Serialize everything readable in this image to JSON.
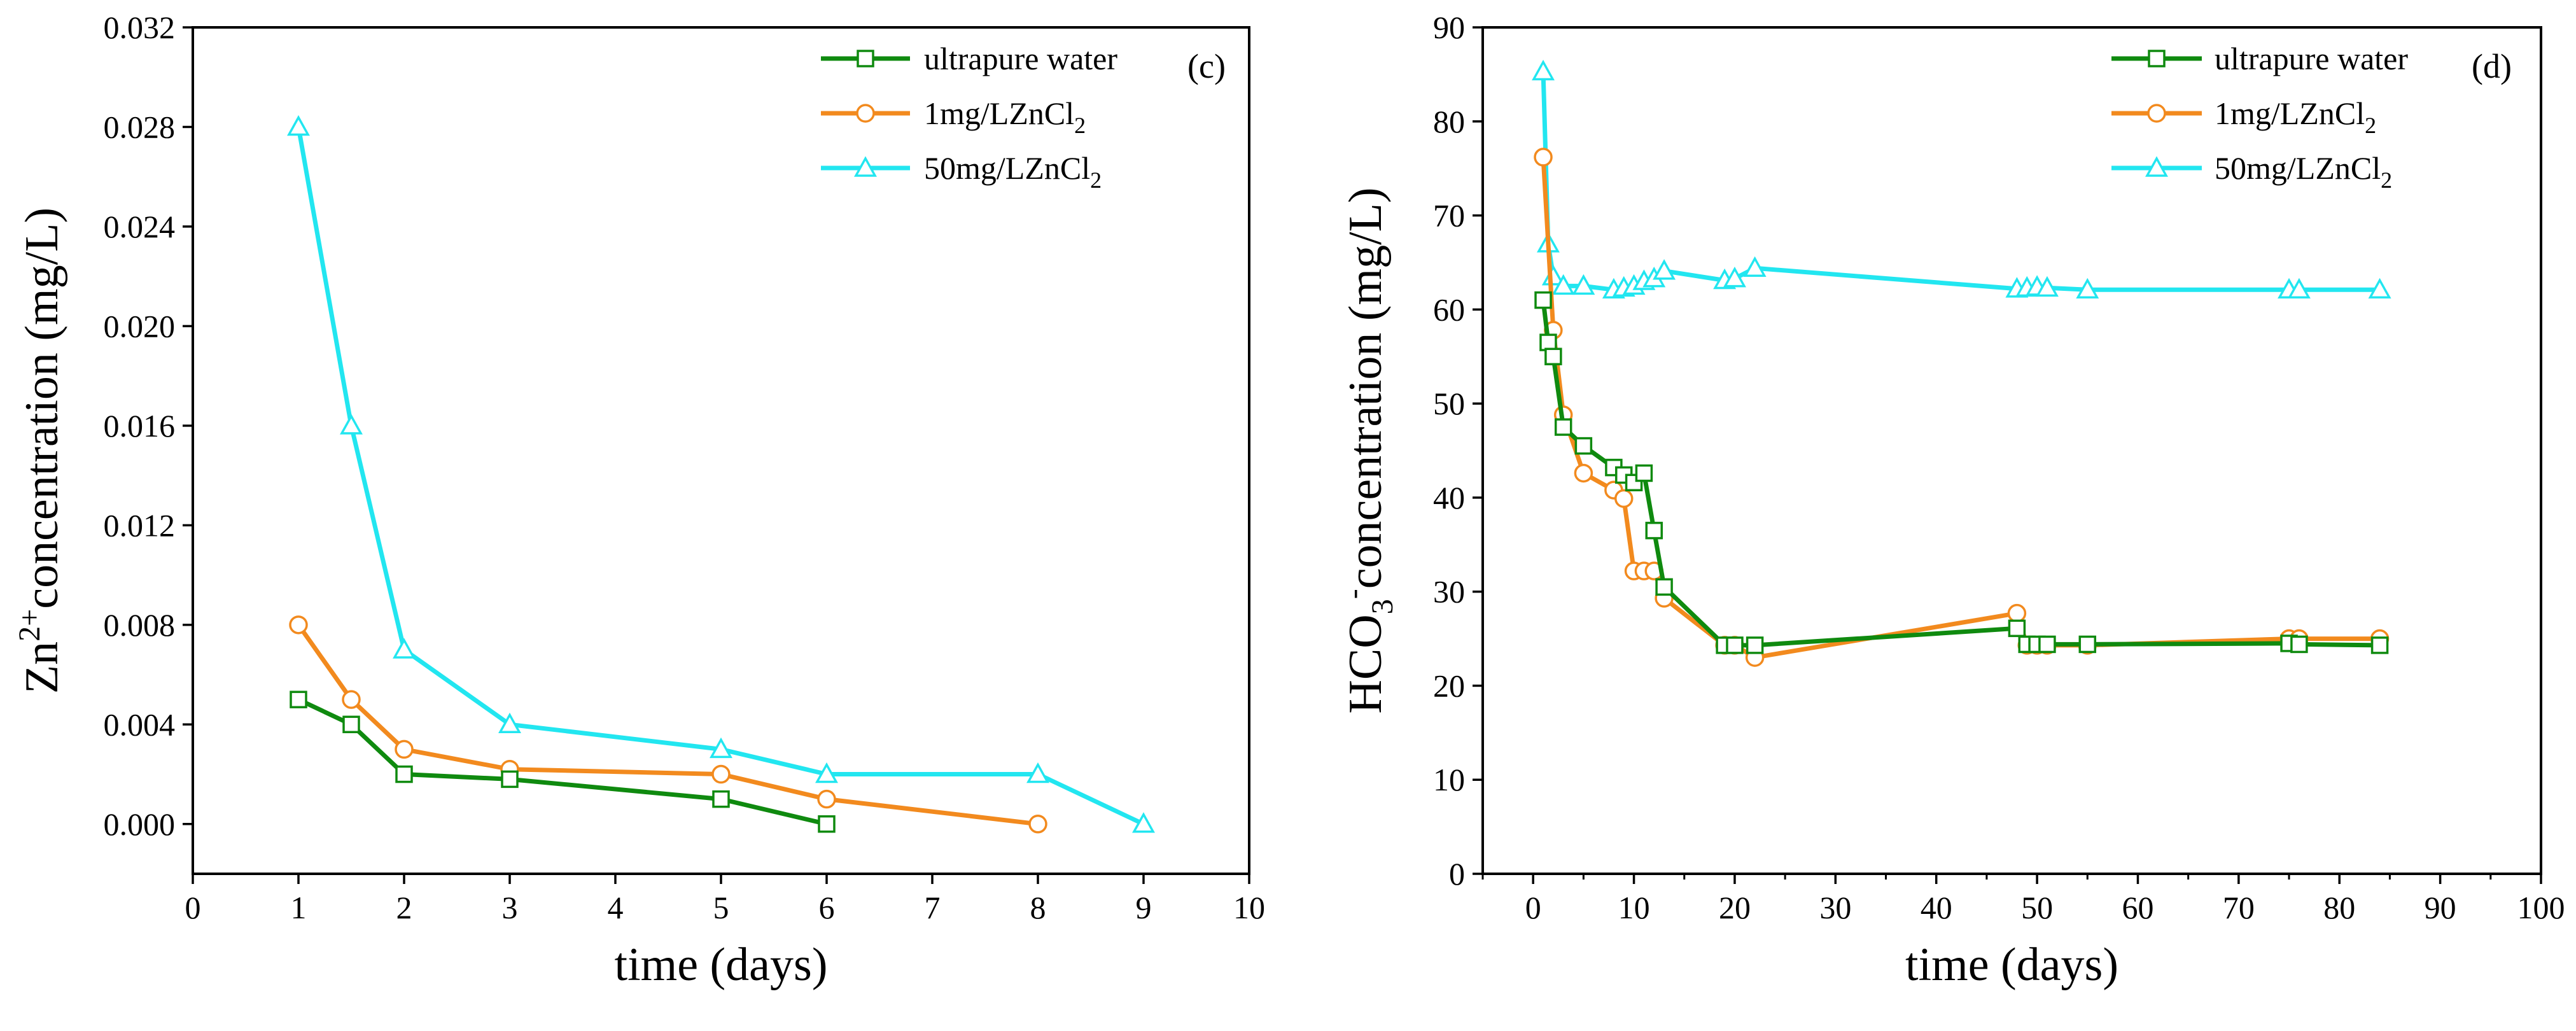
{
  "colors": {
    "ultrapure": "#0f8a0f",
    "one_mg": "#f28a1e",
    "fifty_mg": "#22e6f0"
  },
  "chart_data": [
    {
      "type": "line",
      "panel_label": "(c)",
      "xlabel": "time (days)",
      "ylabel_parts": [
        "Zn",
        "2+",
        "concentration (mg/L)"
      ],
      "xlim": [
        0,
        10
      ],
      "ylim": [
        -0.002,
        0.032
      ],
      "x_ticks": [
        0,
        1,
        2,
        3,
        4,
        5,
        6,
        7,
        8,
        9,
        10
      ],
      "y_ticks": [
        0.0,
        0.004,
        0.008,
        0.012,
        0.016,
        0.02,
        0.024,
        0.028,
        0.032
      ],
      "x_tick_labels": [
        "0",
        "1",
        "2",
        "3",
        "4",
        "5",
        "6",
        "7",
        "8",
        "9",
        "10"
      ],
      "y_tick_labels": [
        "0.000",
        "0.004",
        "0.008",
        "0.012",
        "0.016",
        "0.020",
        "0.024",
        "0.028",
        "0.032"
      ],
      "legend_position": "top-right",
      "series": [
        {
          "name": "ultrapure water",
          "legend_parts": [
            "ultrapure water"
          ],
          "marker": "square",
          "color_key": "ultrapure",
          "x": [
            1,
            1.5,
            2,
            3,
            5,
            6
          ],
          "y": [
            0.005,
            0.004,
            0.002,
            0.0018,
            0.001,
            0.0
          ]
        },
        {
          "name": "1mg/LZnCl2",
          "legend_parts": [
            "1mg/LZnCl",
            "2"
          ],
          "marker": "circle",
          "color_key": "one_mg",
          "x": [
            1,
            1.5,
            2,
            3,
            5,
            6,
            8
          ],
          "y": [
            0.008,
            0.005,
            0.003,
            0.0022,
            0.002,
            0.001,
            0.0
          ]
        },
        {
          "name": "50mg/LZnCl2",
          "legend_parts": [
            "50mg/LZnCl",
            "2"
          ],
          "marker": "triangle",
          "color_key": "fifty_mg",
          "x": [
            1,
            1.5,
            2,
            3,
            5,
            6,
            8,
            9
          ],
          "y": [
            0.028,
            0.016,
            0.007,
            0.004,
            0.003,
            0.002,
            0.002,
            0.0
          ]
        }
      ]
    },
    {
      "type": "line",
      "panel_label": "(d)",
      "xlabel": "time (days)",
      "ylabel_parts": [
        "HCO",
        "3",
        "-",
        "concentration (mg/L)"
      ],
      "xlim": [
        -5,
        100
      ],
      "ylim": [
        0,
        90
      ],
      "x_ticks": [
        0,
        10,
        20,
        30,
        40,
        50,
        60,
        70,
        80,
        90,
        100
      ],
      "y_ticks": [
        0,
        10,
        20,
        30,
        40,
        50,
        60,
        70,
        80,
        90
      ],
      "x_tick_labels": [
        "0",
        "10",
        "20",
        "30",
        "40",
        "50",
        "60",
        "70",
        "80",
        "90",
        "100"
      ],
      "y_tick_labels": [
        "0",
        "10",
        "20",
        "30",
        "40",
        "50",
        "60",
        "70",
        "80",
        "90"
      ],
      "legend_position": "top-right",
      "series": [
        {
          "name": "ultrapure water",
          "legend_parts": [
            "ultrapure water"
          ],
          "marker": "square",
          "color_key": "ultrapure",
          "x": [
            1,
            1.5,
            2,
            3,
            5,
            8,
            9,
            10,
            11,
            12,
            13,
            19,
            20,
            22,
            48,
            49,
            50,
            51,
            55,
            75,
            76,
            84
          ],
          "y": [
            61,
            56.5,
            55,
            47.5,
            45.5,
            43.2,
            42.4,
            41.6,
            42.6,
            36.5,
            30.5,
            24.3,
            24.3,
            24.3,
            26.1,
            24.4,
            24.4,
            24.4,
            24.4,
            24.5,
            24.4,
            24.3
          ]
        },
        {
          "name": "1mg/LZnCl2",
          "legend_parts": [
            "1mg/LZnCl",
            "2"
          ],
          "marker": "circle",
          "color_key": "one_mg",
          "x": [
            1,
            2,
            3,
            5,
            8,
            9,
            10,
            11,
            12,
            13,
            19,
            20,
            22,
            48,
            49,
            50,
            51,
            55,
            75,
            76,
            84
          ],
          "y": [
            76.2,
            57.8,
            48.8,
            42.6,
            40.8,
            39.9,
            32.2,
            32.2,
            32.2,
            29.3,
            24.3,
            24.3,
            23,
            27.7,
            24.3,
            24.3,
            24.3,
            24.3,
            25,
            25,
            25
          ]
        },
        {
          "name": "50mg/LZnCl2",
          "legend_parts": [
            "50mg/LZnCl",
            "2"
          ],
          "marker": "triangle",
          "color_key": "fifty_mg",
          "x": [
            1,
            1.5,
            2,
            3,
            5,
            8,
            9,
            10,
            11,
            12,
            13,
            19,
            20,
            22,
            48,
            49,
            50,
            51,
            55,
            75,
            76,
            84
          ],
          "y": [
            85.3,
            67,
            63.5,
            62.5,
            62.5,
            62.1,
            62.3,
            62.5,
            63,
            63.3,
            64.1,
            63.1,
            63.3,
            64.4,
            62.2,
            62.3,
            62.4,
            62.3,
            62.1,
            62.1,
            62.1,
            62.1
          ]
        }
      ]
    }
  ]
}
